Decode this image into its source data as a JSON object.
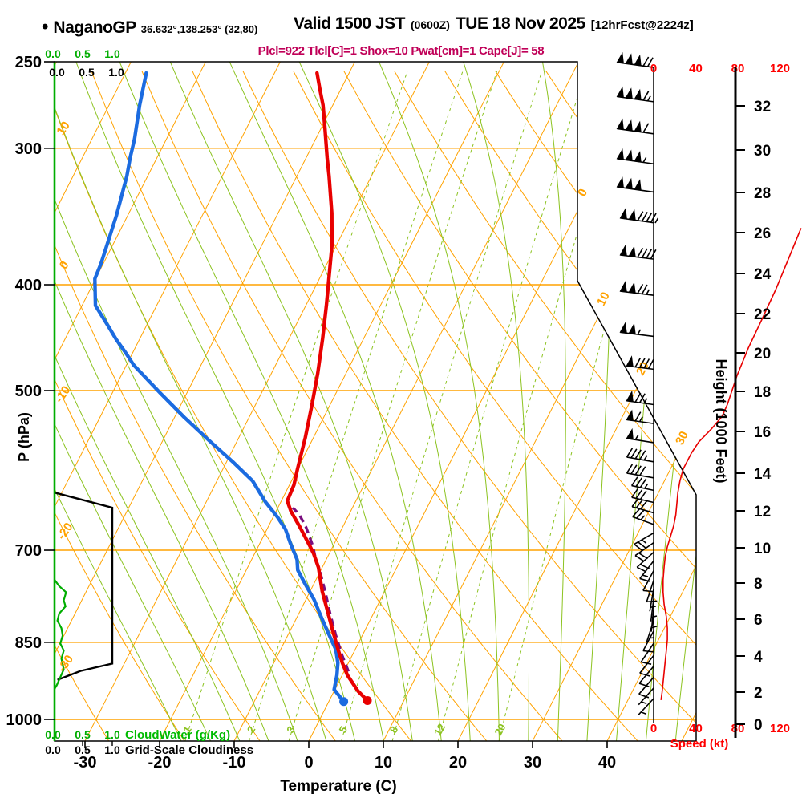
{
  "header": {
    "bullet": "•",
    "station": "NaganoGP",
    "coords": "36.632°,138.253° (32,80)",
    "valid": "Valid 1500 JST",
    "zulu": "(0600Z)",
    "date": "TUE 18 Nov 2025",
    "forecast": "[12hrFcst@2224z]"
  },
  "stats_line": "Plcl=922 Tlcl[C]=1 Shox=10 Pwat[cm]=1 Cape[J]= 58",
  "colors": {
    "grid_orange": "#FFA200",
    "moist_green": "#8CC320",
    "axis_green": "#00AD00",
    "temp_red": "#E80000",
    "dew_blue": "#1B6BE0",
    "parcel_purple": "#7A0E7E",
    "speed_red": "#FF0000",
    "stats_magenta": "#C00058",
    "black": "#000000"
  },
  "axes": {
    "pressure": {
      "label": "P (hPa)",
      "ticks": [
        250,
        300,
        400,
        500,
        700,
        850,
        1000
      ]
    },
    "temperature": {
      "label": "Temperature (C)",
      "ticks": [
        -30,
        -20,
        -10,
        0,
        10,
        20,
        30,
        40
      ]
    },
    "height": {
      "label": "Height (1000 Feet)",
      "ticks": [
        0,
        2,
        4,
        6,
        8,
        10,
        12,
        14,
        16,
        18,
        20,
        22,
        24,
        26,
        28,
        30,
        32
      ]
    },
    "speed": {
      "label": "Speed (kt)",
      "ticks": [
        0,
        40,
        80,
        120
      ]
    },
    "cloud_scales": {
      "tick_labels": [
        "0.0",
        "0.5",
        "1.0"
      ],
      "cloudwater_label": "CloudWater (g/Kg)",
      "cloudiness_label": "Grid-Scale Cloudiness"
    }
  },
  "chart_data": {
    "type": "skewt-log-p",
    "pressure_top_hPa": 250,
    "pressure_bottom_hPa": 1047,
    "isotherms_C": {
      "min": -120,
      "max": 50,
      "step": 10
    },
    "isotherm_edge_labels_C": [
      0,
      10,
      20,
      30
    ],
    "dry_adiabats_C": [
      -60,
      -50,
      -40,
      -30,
      -20,
      -10,
      0,
      10,
      20,
      30,
      40,
      50,
      60,
      70,
      80,
      90,
      100,
      110,
      120,
      130
    ],
    "dry_adiabat_labels_C": [
      10,
      0,
      -10,
      -20,
      -30
    ],
    "moist_adiabats_C": [
      -20,
      -16,
      -12,
      -8,
      -4,
      0,
      4,
      8,
      12,
      16,
      20,
      24,
      28,
      32,
      36,
      40,
      44,
      48
    ],
    "mixing_ratio_lines_gkg": [
      1,
      2,
      3,
      5,
      8,
      12,
      20
    ],
    "temperature_profile_p_t": [
      [
        256,
        -44.3
      ],
      [
        265,
        -42.8
      ],
      [
        274,
        -41.3
      ],
      [
        286,
        -39.7
      ],
      [
        306,
        -37.2
      ],
      [
        318,
        -35.7
      ],
      [
        344,
        -32.8
      ],
      [
        368,
        -30.6
      ],
      [
        394,
        -28.8
      ],
      [
        417,
        -27.3
      ],
      [
        448,
        -25.5
      ],
      [
        482,
        -23.8
      ],
      [
        516,
        -22.4
      ],
      [
        552,
        -21.1
      ],
      [
        590,
        -20.0
      ],
      [
        610,
        -19.4
      ],
      [
        631,
        -19.2
      ],
      [
        645,
        -18.0
      ],
      [
        667,
        -15.7
      ],
      [
        694,
        -13.1
      ],
      [
        705,
        -12.1
      ],
      [
        726,
        -10.5
      ],
      [
        763,
        -8.4
      ],
      [
        793,
        -6.5
      ],
      [
        826,
        -4.5
      ],
      [
        863,
        -2.3
      ],
      [
        888,
        -0.8
      ],
      [
        911,
        0.7
      ],
      [
        942,
        3.2
      ],
      [
        961,
        5.1
      ]
    ],
    "dewpoint_profile_p_t": [
      [
        256,
        -67.2
      ],
      [
        274,
        -65.9
      ],
      [
        294,
        -64.3
      ],
      [
        306,
        -63.6
      ],
      [
        318,
        -62.8
      ],
      [
        335,
        -62.0
      ],
      [
        346,
        -61.5
      ],
      [
        358,
        -61.1
      ],
      [
        370,
        -60.7
      ],
      [
        383,
        -60.3
      ],
      [
        395,
        -60.1
      ],
      [
        418,
        -58.2
      ],
      [
        437,
        -55.0
      ],
      [
        449,
        -53.1
      ],
      [
        462,
        -50.9
      ],
      [
        474,
        -49.0
      ],
      [
        503,
        -43.5
      ],
      [
        529,
        -38.7
      ],
      [
        556,
        -33.7
      ],
      [
        582,
        -29.0
      ],
      [
        605,
        -25.2
      ],
      [
        632,
        -22.1
      ],
      [
        653,
        -19.4
      ],
      [
        670,
        -17.5
      ],
      [
        690,
        -15.9
      ],
      [
        714,
        -13.9
      ],
      [
        730,
        -13.1
      ],
      [
        749,
        -11.4
      ],
      [
        777,
        -8.9
      ],
      [
        808,
        -6.6
      ],
      [
        845,
        -3.9
      ],
      [
        863,
        -2.6
      ],
      [
        888,
        -1.4
      ],
      [
        911,
        -0.7
      ],
      [
        939,
        -0.1
      ],
      [
        963,
        2.0
      ]
    ],
    "parcel_path_p_t": [
      [
        904,
        0.6
      ],
      [
        873,
        -1.4
      ],
      [
        837,
        -3.6
      ],
      [
        802,
        -5.7
      ],
      [
        768,
        -7.7
      ],
      [
        737,
        -9.7
      ],
      [
        714,
        -11.4
      ],
      [
        694,
        -12.7
      ],
      [
        667,
        -14.9
      ],
      [
        650,
        -16.6
      ],
      [
        640,
        -18.0
      ]
    ],
    "cloud_water_p_gkg": [
      [
        745,
        0
      ],
      [
        755,
        0.08
      ],
      [
        765,
        0.2
      ],
      [
        778,
        0.16
      ],
      [
        788,
        0.19
      ],
      [
        800,
        0.08
      ],
      [
        812,
        0.05
      ],
      [
        825,
        0.12
      ],
      [
        838,
        0.14
      ],
      [
        852,
        0.1
      ],
      [
        865,
        0.16
      ],
      [
        880,
        0.12
      ],
      [
        900,
        0.16
      ],
      [
        915,
        0.1
      ],
      [
        930,
        0.04
      ],
      [
        938,
        0
      ]
    ],
    "cloudiness_p_frac": [
      [
        620,
        0
      ],
      [
        640,
        1
      ],
      [
        889,
        1
      ],
      [
        903,
        0.45
      ],
      [
        920,
        0.05
      ]
    ],
    "wind_barbs_p_kt_dir": [
      [
        253,
        170,
        188
      ],
      [
        272,
        165,
        188
      ],
      [
        291,
        160,
        188
      ],
      [
        310,
        155,
        188
      ],
      [
        329,
        150,
        188
      ],
      [
        351,
        145,
        188
      ],
      [
        379,
        140,
        187
      ],
      [
        409,
        125,
        187
      ],
      [
        446,
        105,
        187
      ],
      [
        478,
        90,
        187
      ],
      [
        515,
        75,
        188
      ],
      [
        536,
        65,
        188
      ],
      [
        558,
        55,
        189
      ],
      [
        581,
        48,
        190
      ],
      [
        601,
        42,
        190
      ],
      [
        617,
        38,
        192
      ],
      [
        633,
        33,
        193
      ],
      [
        647,
        30,
        196
      ],
      [
        663,
        28,
        200
      ],
      [
        675,
        25,
        150
      ],
      [
        689,
        22,
        145
      ],
      [
        703,
        20,
        138
      ],
      [
        716,
        17,
        128
      ],
      [
        731,
        14,
        118
      ],
      [
        746,
        11,
        108
      ],
      [
        760,
        9,
        100
      ],
      [
        776,
        8,
        97
      ],
      [
        793,
        8,
        96
      ],
      [
        812,
        9,
        108
      ],
      [
        830,
        11,
        118
      ],
      [
        852,
        12,
        124
      ],
      [
        874,
        12,
        128
      ],
      [
        894,
        11,
        130
      ],
      [
        915,
        10,
        131
      ],
      [
        936,
        9,
        132
      ],
      [
        957,
        8,
        133
      ]
    ],
    "speed_profile_p_kt": [
      [
        355,
        140
      ],
      [
        379,
        128
      ],
      [
        404,
        116
      ],
      [
        430,
        103
      ],
      [
        457,
        90
      ],
      [
        485,
        79
      ],
      [
        515,
        70
      ],
      [
        528,
        65
      ],
      [
        542,
        55
      ],
      [
        557,
        43
      ],
      [
        570,
        36
      ],
      [
        590,
        28
      ],
      [
        605,
        25
      ],
      [
        620,
        23
      ],
      [
        635,
        22
      ],
      [
        650,
        21
      ],
      [
        665,
        19
      ],
      [
        680,
        16
      ],
      [
        695,
        13
      ],
      [
        710,
        11
      ],
      [
        725,
        10
      ],
      [
        745,
        9
      ],
      [
        765,
        9
      ],
      [
        785,
        10
      ],
      [
        805,
        12
      ],
      [
        825,
        13
      ],
      [
        845,
        13
      ],
      [
        865,
        12
      ],
      [
        885,
        11
      ],
      [
        905,
        10
      ],
      [
        925,
        9
      ],
      [
        945,
        8
      ],
      [
        960,
        7
      ]
    ]
  }
}
